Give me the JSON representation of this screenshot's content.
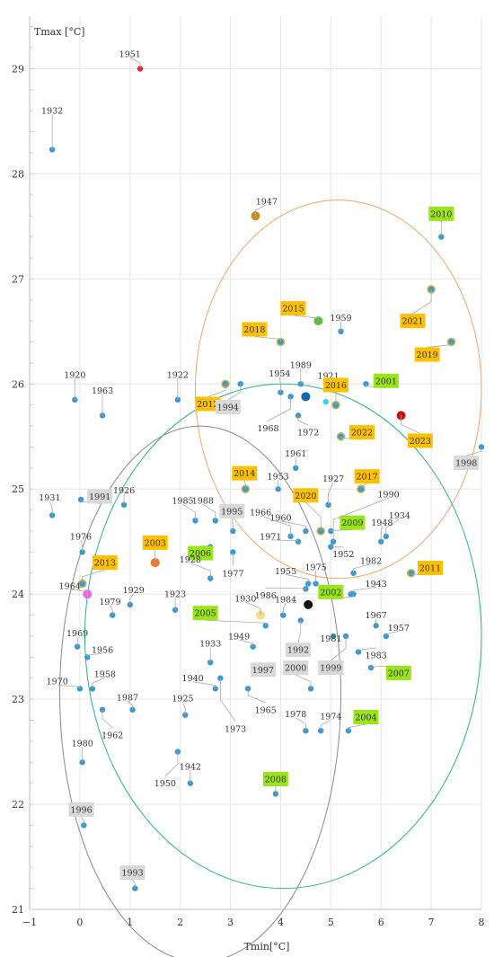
{
  "chart_data": {
    "type": "scatter",
    "title": "",
    "xlabel": "Tmin[°C]",
    "ylabel": "Tmax [°C]",
    "xlim": [
      -1,
      8
    ],
    "ylim": [
      21,
      29.5
    ],
    "x_ticks": [
      -1,
      0,
      1,
      2,
      3,
      4,
      5,
      6,
      7,
      8
    ],
    "y_ticks": [
      21,
      22,
      23,
      24,
      25,
      26,
      27,
      28,
      29
    ],
    "grid": true,
    "colors": {
      "default": "#3b97cf",
      "orange_box": "#ffc000",
      "green_box": "#99e51a",
      "gray_box": "#d9d9d9",
      "ring": "#c9b84c",
      "ellipse_orange": "#f4a46c",
      "ellipse_green": "#2bb38a",
      "ellipse_gray": "#8a8a8a"
    },
    "ellipses": [
      {
        "name": "orange",
        "cx": 5.15,
        "cy": 25.95,
        "rx": 2.85,
        "ry": 1.8
      },
      {
        "name": "green",
        "cx": 4.05,
        "cy": 23.6,
        "rx": 3.95,
        "ry": 2.4
      },
      {
        "name": "gray",
        "cx": 2.4,
        "cy": 23.05,
        "rx": 2.8,
        "ry": 2.55
      }
    ],
    "points": [
      {
        "year": "1951",
        "x": 1.2,
        "y": 29.0,
        "color": "#e8202a",
        "label": {
          "dx": -0.2,
          "dy": 0.14,
          "box": "none"
        }
      },
      {
        "year": "1932",
        "x": -0.55,
        "y": 28.23,
        "label": {
          "dx": 0.0,
          "dy": 0.37,
          "box": "none"
        }
      },
      {
        "year": "1947",
        "x": 3.5,
        "y": 27.6,
        "color": "#c8901c",
        "big": true,
        "label": {
          "dx": 0.22,
          "dy": 0.14,
          "box": "none"
        }
      },
      {
        "year": "2010",
        "x": 7.2,
        "y": 27.4,
        "label": {
          "dx": 0.0,
          "dy": 0.22,
          "box": "green"
        }
      },
      {
        "year": "2021",
        "x": 7.0,
        "y": 26.9,
        "ring": true,
        "label": {
          "dx": -0.37,
          "dy": -0.3,
          "box": "orange"
        }
      },
      {
        "year": "2015",
        "x": 4.75,
        "y": 26.6,
        "color": "#5bbf42",
        "big": true,
        "label": {
          "dx": -0.5,
          "dy": 0.12,
          "box": "orange"
        }
      },
      {
        "year": "1959",
        "x": 5.2,
        "y": 26.5,
        "label": {
          "dx": 0.0,
          "dy": 0.13,
          "box": "none"
        }
      },
      {
        "year": "2018",
        "x": 4.0,
        "y": 26.4,
        "ring": true,
        "label": {
          "dx": -0.52,
          "dy": 0.12,
          "box": "orange"
        }
      },
      {
        "year": "2019",
        "x": 7.4,
        "y": 26.4,
        "ring": true,
        "label": {
          "dx": -0.48,
          "dy": -0.12,
          "box": "orange"
        }
      },
      {
        "year": "1920",
        "x": -0.1,
        "y": 25.85,
        "label": {
          "dx": 0.0,
          "dy": 0.24,
          "box": "none"
        }
      },
      {
        "year": "1963",
        "x": 0.45,
        "y": 25.7,
        "label": {
          "dx": 0.0,
          "dy": 0.24,
          "box": "none"
        }
      },
      {
        "year": "1922",
        "x": 1.95,
        "y": 25.85,
        "label": {
          "dx": 0.0,
          "dy": 0.24,
          "box": "none"
        }
      },
      {
        "year": "2012",
        "x": 2.9,
        "y": 26.0,
        "ring": true,
        "label": {
          "dx": -0.35,
          "dy": -0.19,
          "box": "orange"
        }
      },
      {
        "year": "1994",
        "x": 3.2,
        "y": 26.0,
        "label": {
          "dx": -0.25,
          "dy": -0.22,
          "box": "gray"
        }
      },
      {
        "year": "1954",
        "x": 4.0,
        "y": 25.92,
        "label": {
          "dx": -0.02,
          "dy": 0.18,
          "box": "none"
        }
      },
      {
        "year": "1968",
        "x": 4.2,
        "y": 25.88,
        "label": {
          "dx": -0.45,
          "dy": -0.3,
          "box": "none"
        }
      },
      {
        "year": "1989",
        "x": 4.4,
        "y": 26.0,
        "label": {
          "dx": 0.0,
          "dy": 0.18,
          "box": "none"
        }
      },
      {
        "year": "",
        "x": 4.5,
        "y": 25.88,
        "color": "#1467a8",
        "big": true
      },
      {
        "year": "1921",
        "x": 4.95,
        "y": 25.95,
        "label": {
          "dx": 0.0,
          "dy": 0.13,
          "box": "none"
        }
      },
      {
        "year": "",
        "x": 4.9,
        "y": 25.83,
        "color": "#37d3e3"
      },
      {
        "year": "2016",
        "x": 5.1,
        "y": 25.8,
        "ring": true,
        "label": {
          "dx": 0.0,
          "dy": 0.19,
          "box": "orange"
        }
      },
      {
        "year": "2001",
        "x": 5.7,
        "y": 26.0,
        "label": {
          "dx": 0.4,
          "dy": 0.03,
          "box": "green"
        }
      },
      {
        "year": "1972",
        "x": 4.35,
        "y": 25.7,
        "label": {
          "dx": 0.2,
          "dy": -0.16,
          "box": "none"
        }
      },
      {
        "year": "2022",
        "x": 5.2,
        "y": 25.5,
        "ring": true,
        "label": {
          "dx": 0.42,
          "dy": 0.04,
          "box": "orange"
        }
      },
      {
        "year": "2023",
        "x": 6.4,
        "y": 25.7,
        "color": "#cc1010",
        "big": true,
        "label": {
          "dx": 0.38,
          "dy": -0.24,
          "box": "orange"
        }
      },
      {
        "year": "1998",
        "x": 8.0,
        "y": 25.4,
        "label": {
          "dx": -0.3,
          "dy": -0.15,
          "box": "gray"
        }
      },
      {
        "year": "1961",
        "x": 4.3,
        "y": 25.2,
        "label": {
          "dx": 0.0,
          "dy": 0.14,
          "box": "none"
        }
      },
      {
        "year": "2014",
        "x": 3.3,
        "y": 25.0,
        "ring": true,
        "label": {
          "dx": -0.02,
          "dy": 0.15,
          "box": "orange"
        }
      },
      {
        "year": "1953",
        "x": 3.95,
        "y": 25.0,
        "label": {
          "dx": 0.0,
          "dy": 0.12,
          "box": "none"
        }
      },
      {
        "year": "2017",
        "x": 5.6,
        "y": 25.0,
        "ring": true,
        "label": {
          "dx": 0.12,
          "dy": 0.12,
          "box": "orange"
        }
      },
      {
        "year": "1927",
        "x": 4.95,
        "y": 24.85,
        "label": {
          "dx": 0.1,
          "dy": 0.25,
          "box": "none"
        }
      },
      {
        "year": "1931",
        "x": -0.55,
        "y": 24.75,
        "label": {
          "dx": -0.05,
          "dy": 0.17,
          "box": "none"
        }
      },
      {
        "year": "1991",
        "x": 0.02,
        "y": 24.9,
        "label": {
          "dx": 0.38,
          "dy": 0.03,
          "box": "gray"
        }
      },
      {
        "year": "1926",
        "x": 0.88,
        "y": 24.85,
        "label": {
          "dx": 0.0,
          "dy": 0.14,
          "box": "none"
        }
      },
      {
        "year": "2020",
        "x": 4.8,
        "y": 24.6,
        "ring": true,
        "label": {
          "dx": -0.3,
          "dy": 0.34,
          "box": "orange"
        }
      },
      {
        "year": "1985",
        "x": 2.3,
        "y": 24.7,
        "label": {
          "dx": -0.25,
          "dy": 0.19,
          "box": "none"
        }
      },
      {
        "year": "1988",
        "x": 2.7,
        "y": 24.7,
        "label": {
          "dx": -0.25,
          "dy": 0.19,
          "box": "none"
        }
      },
      {
        "year": "1995",
        "x": 3.05,
        "y": 24.6,
        "label": {
          "dx": -0.02,
          "dy": 0.19,
          "box": "gray"
        }
      },
      {
        "year": "1966",
        "x": 4.2,
        "y": 24.55,
        "label": {
          "dx": -0.6,
          "dy": 0.23,
          "box": "none"
        }
      },
      {
        "year": "1960",
        "x": 4.5,
        "y": 24.6,
        "label": {
          "dx": -0.5,
          "dy": 0.13,
          "box": "none"
        }
      },
      {
        "year": "2009",
        "x": 5.0,
        "y": 24.6,
        "label": {
          "dx": 0.43,
          "dy": 0.08,
          "box": "green"
        }
      },
      {
        "year": "1990",
        "x": 5.05,
        "y": 24.5,
        "label": {
          "dx": 1.1,
          "dy": 0.45,
          "box": "none"
        }
      },
      {
        "year": "1934",
        "x": 6.1,
        "y": 24.55,
        "label": {
          "dx": 0.27,
          "dy": 0.2,
          "box": "none"
        }
      },
      {
        "year": "1948",
        "x": 6.0,
        "y": 24.5,
        "label": {
          "dx": 0.02,
          "dy": 0.18,
          "box": "none"
        }
      },
      {
        "year": "1976",
        "x": 0.05,
        "y": 24.4,
        "label": {
          "dx": -0.03,
          "dy": 0.15,
          "box": "none"
        }
      },
      {
        "year": "2003",
        "x": 1.5,
        "y": 24.3,
        "color": "#f0762b",
        "big": true,
        "label": {
          "dx": 0.0,
          "dy": 0.19,
          "box": "orange"
        }
      },
      {
        "year": "2006",
        "x": 2.6,
        "y": 24.45,
        "label": {
          "dx": -0.2,
          "dy": -0.06,
          "box": "green"
        }
      },
      {
        "year": "1971",
        "x": 4.35,
        "y": 24.5,
        "label": {
          "dx": -0.55,
          "dy": 0.05,
          "box": "none"
        }
      },
      {
        "year": "1952",
        "x": 5.0,
        "y": 24.45,
        "label": {
          "dx": 0.25,
          "dy": -0.07,
          "box": "none"
        }
      },
      {
        "year": "1977",
        "x": 3.05,
        "y": 24.4,
        "label": {
          "dx": 0.0,
          "dy": -0.2,
          "box": "none"
        }
      },
      {
        "year": "1982",
        "x": 5.45,
        "y": 24.2,
        "label": {
          "dx": 0.35,
          "dy": 0.12,
          "box": "none"
        }
      },
      {
        "year": "2013",
        "x": 0.05,
        "y": 24.1,
        "ring": true,
        "label": {
          "dx": 0.45,
          "dy": 0.2,
          "box": "orange"
        }
      },
      {
        "year": "1928",
        "x": 2.6,
        "y": 24.15,
        "label": {
          "dx": -0.4,
          "dy": 0.18,
          "box": "none"
        }
      },
      {
        "year": "1955",
        "x": 4.55,
        "y": 24.1,
        "label": {
          "dx": -0.45,
          "dy": 0.12,
          "box": "none"
        }
      },
      {
        "year": "1975",
        "x": 4.7,
        "y": 24.1,
        "label": {
          "dx": 0.0,
          "dy": 0.16,
          "box": "none"
        }
      },
      {
        "year": "2011",
        "x": 6.6,
        "y": 24.2,
        "ring": true,
        "label": {
          "dx": 0.38,
          "dy": 0.05,
          "box": "orange"
        }
      },
      {
        "year": "1986",
        "x": 4.5,
        "y": 24.05,
        "label": {
          "dx": -0.8,
          "dy": -0.06,
          "box": "none"
        }
      },
      {
        "year": "1943",
        "x": 5.4,
        "y": 24.0,
        "label": {
          "dx": 0.5,
          "dy": 0.1,
          "box": "none"
        }
      },
      {
        "year": "2002",
        "x": 5.45,
        "y": 24.0,
        "label": {
          "dx": -0.45,
          "dy": 0.02,
          "box": "green"
        }
      },
      {
        "year": "1964",
        "x": 0.15,
        "y": 24.0,
        "color": "#ee66e8",
        "big": true,
        "label": {
          "dx": -0.35,
          "dy": 0.08,
          "box": "none"
        }
      },
      {
        "year": "1979",
        "x": 0.65,
        "y": 23.8,
        "label": {
          "dx": -0.05,
          "dy": 0.13,
          "box": "none"
        }
      },
      {
        "year": "1929",
        "x": 1.0,
        "y": 23.9,
        "label": {
          "dx": 0.07,
          "dy": 0.14,
          "box": "none"
        }
      },
      {
        "year": "1923",
        "x": 1.9,
        "y": 23.85,
        "label": {
          "dx": 0.0,
          "dy": 0.15,
          "box": "none"
        }
      },
      {
        "year": "1930",
        "x": 3.6,
        "y": 23.8,
        "color": "#f7dc8a",
        "big": true,
        "label": {
          "dx": -0.3,
          "dy": 0.16,
          "box": "none"
        }
      },
      {
        "year": "2005",
        "x": 3.7,
        "y": 23.7,
        "label": {
          "dx": -1.2,
          "dy": 0.12,
          "box": "green"
        }
      },
      {
        "year": "1984",
        "x": 4.05,
        "y": 23.8,
        "label": {
          "dx": 0.05,
          "dy": 0.15,
          "box": "none"
        }
      },
      {
        "year": "",
        "x": 4.55,
        "y": 23.9,
        "color": "#111111",
        "big": true
      },
      {
        "year": "1992",
        "x": 4.4,
        "y": 23.75,
        "label": {
          "dx": -0.05,
          "dy": -0.28,
          "box": "gray"
        }
      },
      {
        "year": "1967",
        "x": 5.9,
        "y": 23.7,
        "label": {
          "dx": 0.0,
          "dy": 0.1,
          "box": "none"
        }
      },
      {
        "year": "1957",
        "x": 6.1,
        "y": 23.6,
        "label": {
          "dx": 0.25,
          "dy": 0.08,
          "box": "none"
        }
      },
      {
        "year": "1981",
        "x": 5.05,
        "y": 23.6,
        "label": {
          "dx": -0.05,
          "dy": -0.02,
          "box": "none"
        }
      },
      {
        "year": "1999",
        "x": 5.3,
        "y": 23.6,
        "label": {
          "dx": -0.3,
          "dy": -0.3,
          "box": "gray"
        }
      },
      {
        "year": "1969",
        "x": -0.05,
        "y": 23.5,
        "label": {
          "dx": 0.0,
          "dy": 0.13,
          "box": "none"
        }
      },
      {
        "year": "1956",
        "x": 0.15,
        "y": 23.4,
        "label": {
          "dx": 0.3,
          "dy": 0.07,
          "box": "none"
        }
      },
      {
        "year": "1949",
        "x": 3.45,
        "y": 23.5,
        "label": {
          "dx": -0.28,
          "dy": 0.1,
          "box": "none"
        }
      },
      {
        "year": "1933",
        "x": 2.6,
        "y": 23.35,
        "label": {
          "dx": 0.0,
          "dy": 0.18,
          "box": "none"
        }
      },
      {
        "year": "1983",
        "x": 5.55,
        "y": 23.45,
        "label": {
          "dx": 0.35,
          "dy": -0.03,
          "box": "none"
        }
      },
      {
        "year": "2007",
        "x": 5.8,
        "y": 23.3,
        "label": {
          "dx": 0.55,
          "dy": -0.05,
          "box": "green"
        }
      },
      {
        "year": "1958",
        "x": 0.25,
        "y": 23.1,
        "label": {
          "dx": 0.25,
          "dy": 0.14,
          "box": "none"
        }
      },
      {
        "year": "1997",
        "x": 3.6,
        "y": 23.3,
        "label": {
          "dx": 0.05,
          "dy": -0.02,
          "box": "gray"
        }
      },
      {
        "year": "2000",
        "x": 4.6,
        "y": 23.1,
        "label": {
          "dx": -0.3,
          "dy": 0.2,
          "box": "gray"
        }
      },
      {
        "year": "1940",
        "x": 2.7,
        "y": 23.1,
        "label": {
          "dx": -0.45,
          "dy": 0.1,
          "box": "none"
        }
      },
      {
        "year": "1970",
        "x": 0.0,
        "y": 23.1,
        "label": {
          "dx": -0.45,
          "dy": 0.07,
          "box": "none"
        }
      },
      {
        "year": "1973",
        "x": 2.8,
        "y": 23.2,
        "label": {
          "dx": 0.3,
          "dy": -0.48,
          "box": "none"
        }
      },
      {
        "year": "1965",
        "x": 3.35,
        "y": 23.1,
        "label": {
          "dx": 0.35,
          "dy": -0.2,
          "box": "none"
        }
      },
      {
        "year": "1987",
        "x": 1.05,
        "y": 22.9,
        "label": {
          "dx": -0.1,
          "dy": 0.12,
          "box": "none"
        }
      },
      {
        "year": "1962",
        "x": 0.45,
        "y": 22.9,
        "label": {
          "dx": 0.2,
          "dy": -0.24,
          "box": "none"
        }
      },
      {
        "year": "1925",
        "x": 2.1,
        "y": 22.85,
        "label": {
          "dx": -0.05,
          "dy": 0.16,
          "box": "none"
        }
      },
      {
        "year": "1978",
        "x": 4.5,
        "y": 22.7,
        "label": {
          "dx": -0.2,
          "dy": 0.16,
          "box": "none"
        }
      },
      {
        "year": "1974",
        "x": 4.8,
        "y": 22.7,
        "label": {
          "dx": 0.2,
          "dy": 0.14,
          "box": "none"
        }
      },
      {
        "year": "2004",
        "x": 5.35,
        "y": 22.7,
        "label": {
          "dx": 0.35,
          "dy": 0.13,
          "box": "green"
        }
      },
      {
        "year": "1980",
        "x": 0.05,
        "y": 22.4,
        "label": {
          "dx": 0.0,
          "dy": 0.18,
          "box": "none"
        }
      },
      {
        "year": "1950",
        "x": 1.95,
        "y": 22.5,
        "label": {
          "dx": -0.25,
          "dy": -0.3,
          "box": "none"
        }
      },
      {
        "year": "1942",
        "x": 2.2,
        "y": 22.2,
        "label": {
          "dx": 0.0,
          "dy": 0.16,
          "box": "none"
        }
      },
      {
        "year": "2008",
        "x": 3.9,
        "y": 22.1,
        "label": {
          "dx": 0.0,
          "dy": 0.14,
          "box": "green"
        }
      },
      {
        "year": "1996",
        "x": 0.08,
        "y": 21.8,
        "label": {
          "dx": -0.05,
          "dy": 0.15,
          "box": "gray"
        }
      },
      {
        "year": "1993",
        "x": 1.1,
        "y": 21.2,
        "label": {
          "dx": -0.05,
          "dy": 0.15,
          "box": "gray"
        }
      }
    ]
  }
}
